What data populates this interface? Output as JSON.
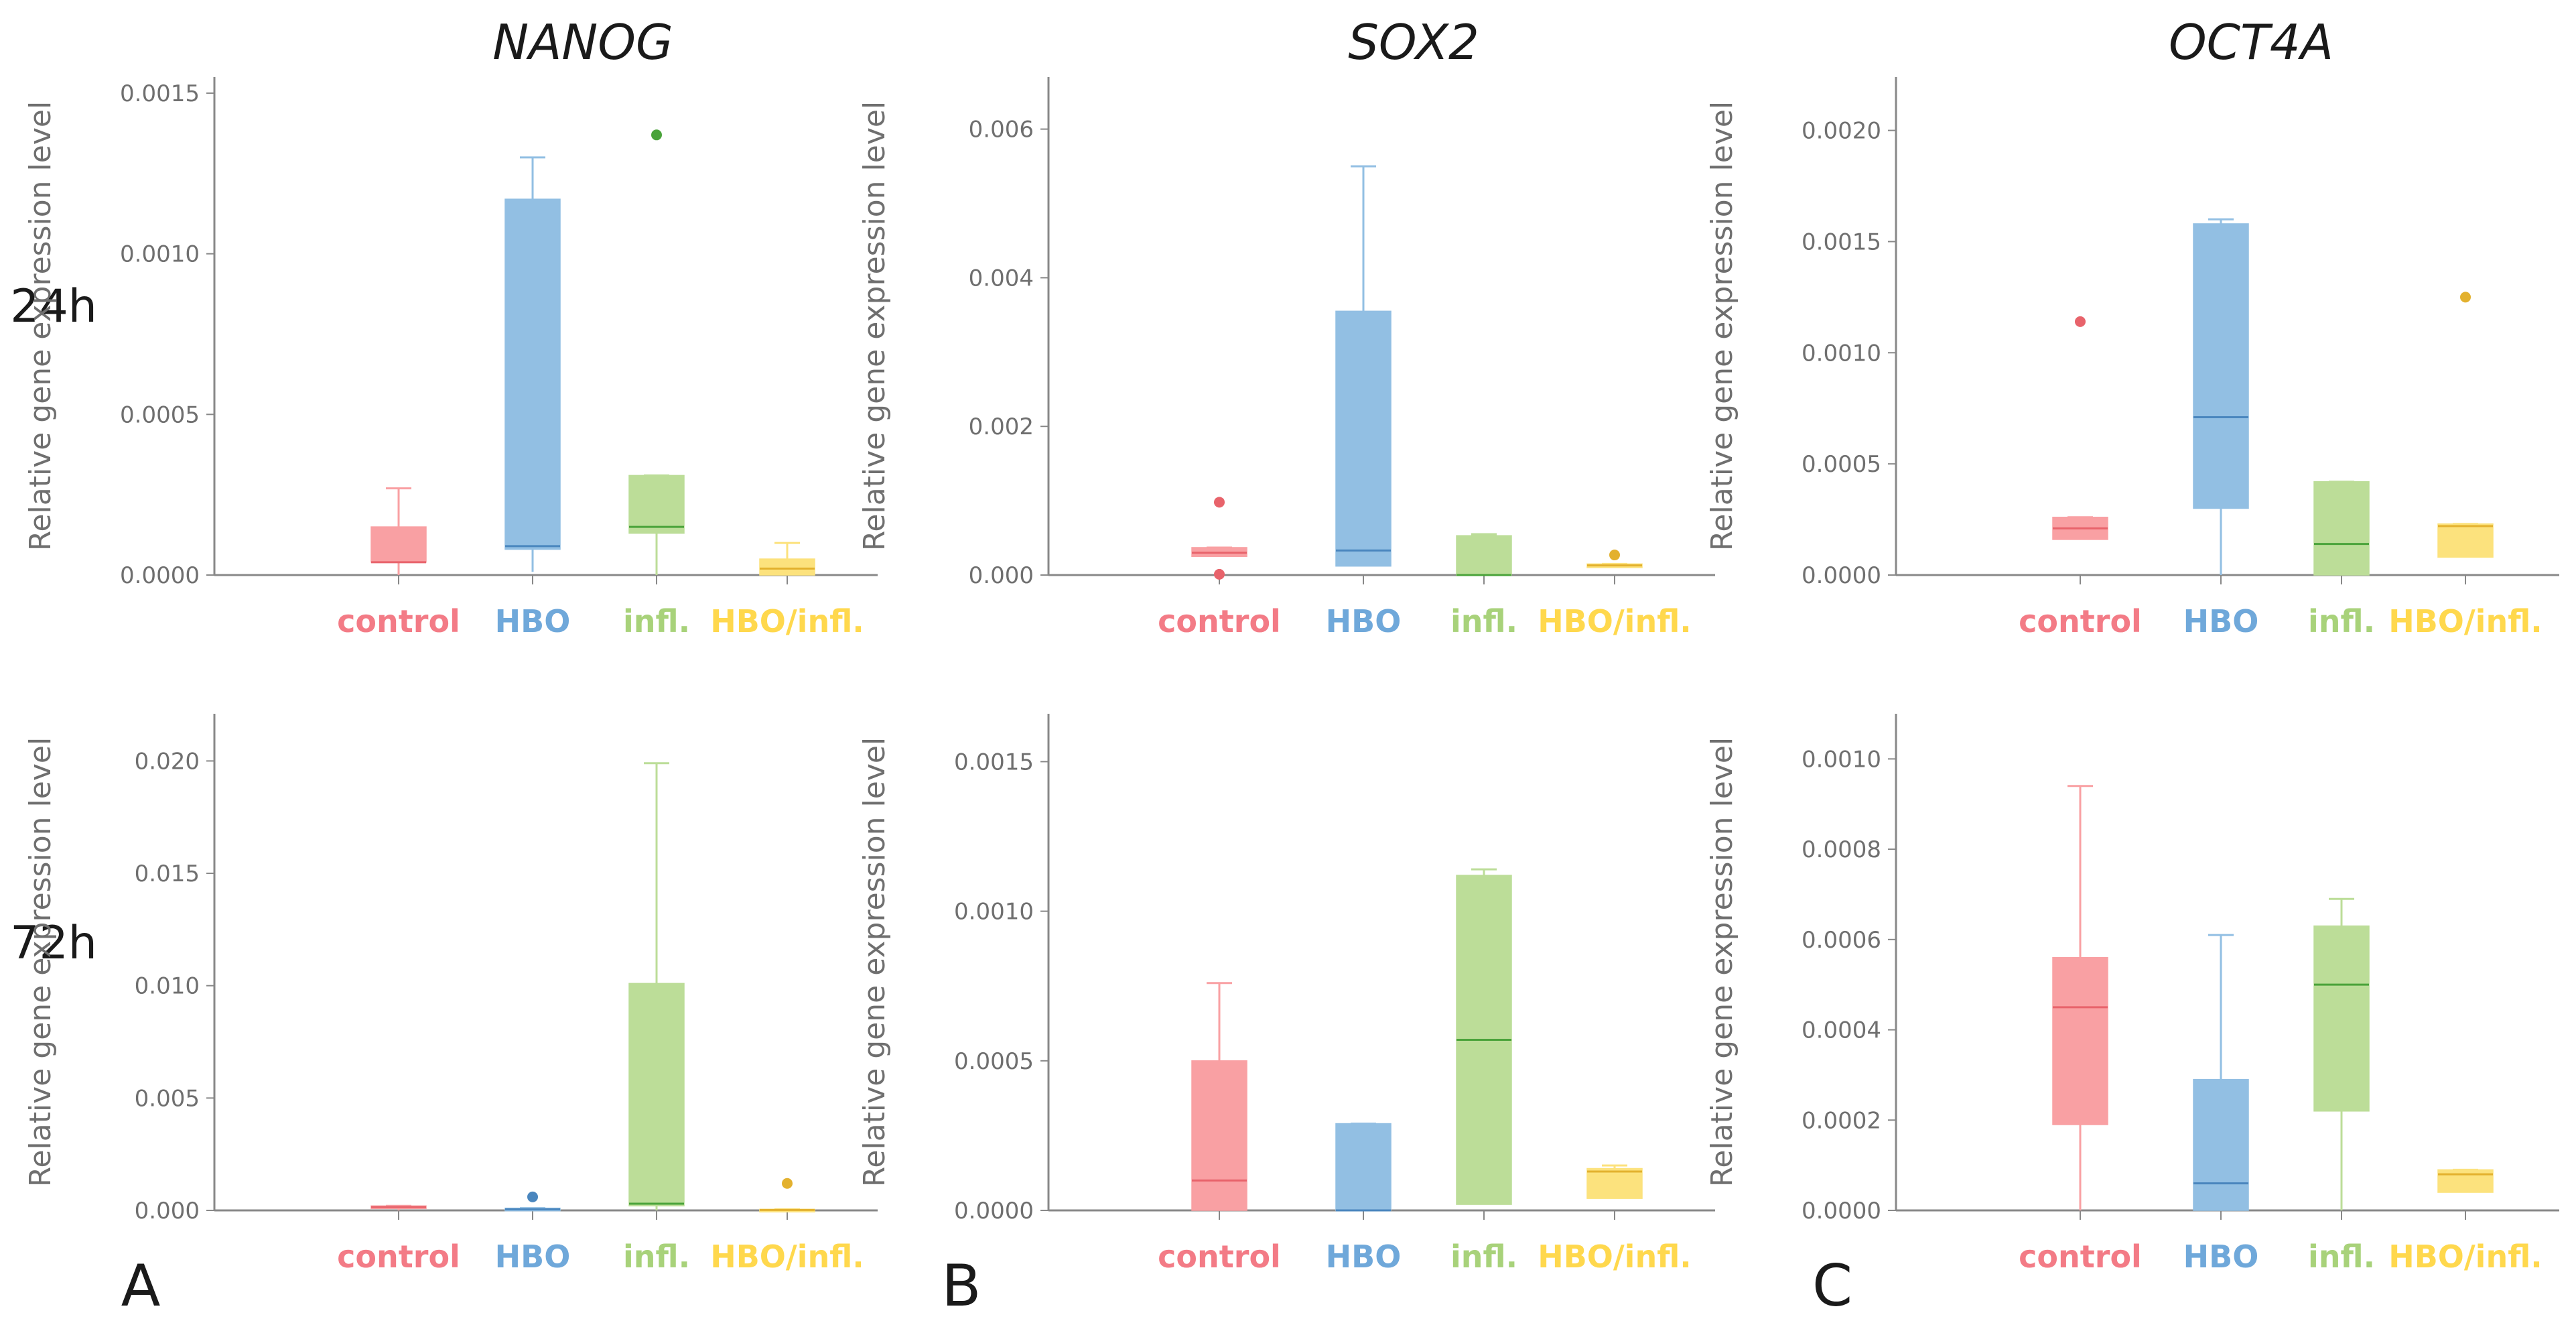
{
  "figure": {
    "gene_titles": [
      "NANOG",
      "SOX2",
      "OCT4A"
    ],
    "row_labels": [
      "24h",
      "72h"
    ],
    "panel_labels": [
      "A",
      "B",
      "C"
    ],
    "colors": {
      "control": {
        "fill": "#F9A0A3",
        "line": "#E8636B",
        "text": "#F37B86"
      },
      "HBO": {
        "fill": "#92BFE3",
        "line": "#4A86BE",
        "text": "#6FA8DA"
      },
      "infl.": {
        "fill": "#BCDD98",
        "line": "#4AA33A",
        "text": "#A8D27A"
      },
      "HBO/infl.": {
        "fill": "#FCE27D",
        "line": "#E3B12E",
        "text": "#FFD84D"
      }
    }
  },
  "chart_data": [
    {
      "type": "box",
      "gene": "NANOG",
      "time": "24h",
      "ylabel": "Relative gene expression level",
      "ylim": [
        0,
        0.00155
      ],
      "yticks": [
        "0.0000",
        "0.0005",
        "0.0010",
        "0.0015"
      ],
      "ytick_values": [
        0,
        0.0005,
        0.001,
        0.0015
      ],
      "categories": [
        "control",
        "HBO",
        "infl.",
        "HBO/infl."
      ],
      "boxes": [
        {
          "min": 0.0,
          "q1": 4e-05,
          "median": 4e-05,
          "q3": 0.00015,
          "max": 0.00027,
          "outliers": []
        },
        {
          "min": 1e-05,
          "q1": 8e-05,
          "median": 9e-05,
          "q3": 0.00117,
          "max": 0.0013,
          "outliers": []
        },
        {
          "min": 0.0,
          "q1": 0.00013,
          "median": 0.00015,
          "q3": 0.00031,
          "max": 0.00031,
          "outliers": [
            0.00137
          ]
        },
        {
          "min": 0.0,
          "q1": 0.0,
          "median": 2e-05,
          "q3": 5e-05,
          "max": 0.0001,
          "outliers": []
        }
      ]
    },
    {
      "type": "box",
      "gene": "SOX2",
      "time": "24h",
      "ylabel": "Relative gene expression level",
      "ylim": [
        0,
        0.0067
      ],
      "yticks": [
        "0.000",
        "0.002",
        "0.004",
        "0.006"
      ],
      "ytick_values": [
        0,
        0.002,
        0.004,
        0.006
      ],
      "categories": [
        "control",
        "HBO",
        "infl.",
        "HBO/infl."
      ],
      "boxes": [
        {
          "min": 0.00025,
          "q1": 0.00025,
          "median": 0.0003,
          "q3": 0.00037,
          "max": 0.00037,
          "outliers": [
            0.00098,
            1e-05
          ]
        },
        {
          "min": 0.00012,
          "q1": 0.00012,
          "median": 0.00033,
          "q3": 0.00355,
          "max": 0.0055,
          "outliers": []
        },
        {
          "min": 0.0,
          "q1": 0.0,
          "median": 0.0,
          "q3": 0.00053,
          "max": 0.00055,
          "outliers": []
        },
        {
          "min": 0.0001,
          "q1": 0.0001,
          "median": 0.00013,
          "q3": 0.00015,
          "max": 0.00015,
          "outliers": [
            0.00027
          ]
        }
      ]
    },
    {
      "type": "box",
      "gene": "OCT4A",
      "time": "24h",
      "ylabel": "Relative gene expression level",
      "ylim": [
        0,
        0.00224
      ],
      "yticks": [
        "0.0000",
        "0.0005",
        "0.0010",
        "0.0015",
        "0.0020"
      ],
      "ytick_values": [
        0,
        0.0005,
        0.001,
        0.0015,
        0.002
      ],
      "categories": [
        "control",
        "HBO",
        "infl.",
        "HBO/infl."
      ],
      "boxes": [
        {
          "min": 0.00016,
          "q1": 0.00016,
          "median": 0.00021,
          "q3": 0.00026,
          "max": 0.00026,
          "outliers": [
            0.00114
          ]
        },
        {
          "min": 0.0,
          "q1": 0.0003,
          "median": 0.00071,
          "q3": 0.00158,
          "max": 0.0016,
          "outliers": []
        },
        {
          "min": 0.0,
          "q1": 0.0,
          "median": 0.00014,
          "q3": 0.00042,
          "max": 0.00042,
          "outliers": []
        },
        {
          "min": 8e-05,
          "q1": 8e-05,
          "median": 0.00022,
          "q3": 0.00023,
          "max": 0.00023,
          "outliers": [
            0.00125
          ]
        }
      ]
    },
    {
      "type": "box",
      "gene": "NANOG",
      "time": "72h",
      "ylabel": "Relative gene expression level",
      "ylim": [
        0,
        0.0221
      ],
      "yticks": [
        "0.000",
        "0.005",
        "0.010",
        "0.015",
        "0.020"
      ],
      "ytick_values": [
        0,
        0.005,
        0.01,
        0.015,
        0.02
      ],
      "categories": [
        "control",
        "HBO",
        "infl.",
        "HBO/infl."
      ],
      "boxes": [
        {
          "min": 0.0,
          "q1": 0.0001,
          "median": 0.00015,
          "q3": 0.0002,
          "max": 0.0002,
          "outliers": []
        },
        {
          "min": 0.0,
          "q1": 0.0,
          "median": 5e-05,
          "q3": 0.0001,
          "max": 0.0001,
          "outliers": [
            0.0006
          ]
        },
        {
          "min": 0.0,
          "q1": 0.0002,
          "median": 0.0003,
          "q3": 0.0101,
          "max": 0.0199,
          "outliers": []
        },
        {
          "min": 0.0,
          "q1": 0.0,
          "median": 2e-05,
          "q3": 5e-05,
          "max": 5e-05,
          "outliers": [
            0.0012
          ]
        }
      ]
    },
    {
      "type": "box",
      "gene": "SOX2",
      "time": "72h",
      "ylabel": "Relative gene expression level",
      "ylim": [
        0,
        0.00166
      ],
      "yticks": [
        "0.0000",
        "0.0005",
        "0.0010",
        "0.0015"
      ],
      "ytick_values": [
        0,
        0.0005,
        0.001,
        0.0015
      ],
      "categories": [
        "control",
        "HBO",
        "infl.",
        "HBO/infl."
      ],
      "boxes": [
        {
          "min": 0.0,
          "q1": 0.0,
          "median": 0.0001,
          "q3": 0.0005,
          "max": 0.00076,
          "outliers": []
        },
        {
          "min": 0.0,
          "q1": 0.0,
          "median": 0.0,
          "q3": 0.00029,
          "max": 0.00029,
          "outliers": []
        },
        {
          "min": 2e-05,
          "q1": 2e-05,
          "median": 0.00057,
          "q3": 0.00112,
          "max": 0.00114,
          "outliers": []
        },
        {
          "min": 4e-05,
          "q1": 4e-05,
          "median": 0.00013,
          "q3": 0.00014,
          "max": 0.00015,
          "outliers": []
        }
      ]
    },
    {
      "type": "box",
      "gene": "OCT4A",
      "time": "72h",
      "ylabel": "Relative gene expression level",
      "ylim": [
        0,
        0.0011
      ],
      "yticks": [
        "0.0000",
        "0.0002",
        "0.0004",
        "0.0006",
        "0.0008",
        "0.0010"
      ],
      "ytick_values": [
        0,
        0.0002,
        0.0004,
        0.0006,
        0.0008,
        0.001
      ],
      "categories": [
        "control",
        "HBO",
        "infl.",
        "HBO/infl."
      ],
      "boxes": [
        {
          "min": 0.0,
          "q1": 0.00019,
          "median": 0.00045,
          "q3": 0.00056,
          "max": 0.00094,
          "outliers": []
        },
        {
          "min": 0.0,
          "q1": 0.0,
          "median": 6e-05,
          "q3": 0.00029,
          "max": 0.00061,
          "outliers": []
        },
        {
          "min": 0.0,
          "q1": 0.00022,
          "median": 0.0005,
          "q3": 0.00063,
          "max": 0.00069,
          "outliers": []
        },
        {
          "min": 4e-05,
          "q1": 4e-05,
          "median": 8e-05,
          "q3": 9e-05,
          "max": 9e-05,
          "outliers": []
        }
      ]
    }
  ]
}
